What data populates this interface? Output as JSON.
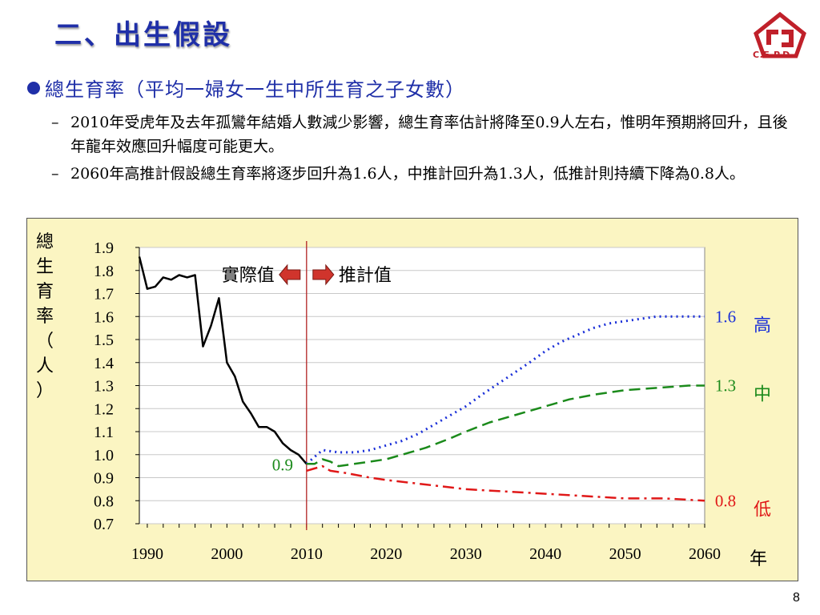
{
  "slide": {
    "title": "二、出生假設",
    "logo_text": "C.E.P.D.",
    "bullet": "總生育率（平均一婦女一生中所生育之子女數）",
    "subpoints": [
      "2010年受虎年及去年孤鸞年結婚人數減少影響，總生育率估計將降至0.9人左右，惟明年預期將回升，且後年龍年效應回升幅度可能更大。",
      "2060年高推計假設總生育率將逐步回升為1.6人，中推計回升為1.3人，低推計則持續下降為0.8人。"
    ],
    "page_number": "8",
    "colors": {
      "title": "#1f2fa8",
      "chart_bg": "#fbf5c2",
      "high": "#1a2fd8",
      "mid": "#1b8a1b",
      "low": "#e01818",
      "actual": "#000000",
      "divider": "#b22222"
    }
  },
  "chart_data": {
    "type": "line",
    "ylabel": "總生育率（人）",
    "xlabel": "年",
    "y_ticks": [
      "1.9",
      "1.8",
      "1.7",
      "1.6",
      "1.5",
      "1.4",
      "1.3",
      "1.2",
      "1.1",
      "1.0",
      "0.9",
      "0.8",
      "0.7"
    ],
    "x_ticks": [
      "1990",
      "2000",
      "2010",
      "2020",
      "2030",
      "2040",
      "2050",
      "2060"
    ],
    "ylim": [
      0.7,
      1.9
    ],
    "xlim": [
      1989,
      2060
    ],
    "legend": {
      "actual": "實際值",
      "projected": "推計值"
    },
    "annotations": {
      "start": "0.9",
      "high_end": "1.6",
      "mid_end": "1.3",
      "low_end": "0.8"
    },
    "grid": true,
    "series": [
      {
        "name": "實際值",
        "style": "solid",
        "color": "#000000",
        "x": [
          1989,
          1990,
          1991,
          1992,
          1993,
          1994,
          1995,
          1996,
          1997,
          1998,
          1999,
          2000,
          2001,
          2002,
          2003,
          2004,
          2005,
          2006,
          2007,
          2008,
          2009,
          2010
        ],
        "y": [
          1.86,
          1.72,
          1.73,
          1.77,
          1.76,
          1.78,
          1.77,
          1.78,
          1.47,
          1.56,
          1.68,
          1.4,
          1.34,
          1.23,
          1.18,
          1.12,
          1.12,
          1.1,
          1.05,
          1.02,
          1.0,
          0.96
        ]
      },
      {
        "name": "高",
        "style": "dotted",
        "color": "#1a2fd8",
        "x": [
          2010,
          2011,
          2012,
          2014,
          2016,
          2018,
          2020,
          2022,
          2024,
          2026,
          2028,
          2030,
          2032,
          2035,
          2038,
          2040,
          2042,
          2044,
          2046,
          2048,
          2050,
          2052,
          2054,
          2056,
          2058,
          2060
        ],
        "y": [
          0.96,
          0.99,
          1.02,
          1.01,
          1.01,
          1.02,
          1.04,
          1.06,
          1.09,
          1.13,
          1.17,
          1.21,
          1.26,
          1.33,
          1.4,
          1.45,
          1.49,
          1.52,
          1.55,
          1.57,
          1.58,
          1.59,
          1.6,
          1.6,
          1.6,
          1.6
        ]
      },
      {
        "name": "中",
        "style": "dashed",
        "color": "#1b8a1b",
        "x": [
          2010,
          2011,
          2012,
          2013,
          2014,
          2016,
          2018,
          2020,
          2022,
          2025,
          2028,
          2030,
          2033,
          2036,
          2040,
          2043,
          2046,
          2050,
          2054,
          2058,
          2060
        ],
        "y": [
          0.96,
          0.96,
          0.98,
          0.97,
          0.95,
          0.96,
          0.97,
          0.98,
          1.0,
          1.03,
          1.07,
          1.1,
          1.14,
          1.17,
          1.21,
          1.24,
          1.26,
          1.28,
          1.29,
          1.3,
          1.3
        ]
      },
      {
        "name": "低",
        "style": "dashdot",
        "color": "#e01818",
        "x": [
          2010,
          2011,
          2012,
          2013,
          2015,
          2018,
          2020,
          2025,
          2030,
          2035,
          2040,
          2045,
          2050,
          2055,
          2060
        ],
        "y": [
          0.93,
          0.94,
          0.95,
          0.93,
          0.92,
          0.9,
          0.89,
          0.87,
          0.85,
          0.84,
          0.83,
          0.82,
          0.81,
          0.81,
          0.8
        ]
      }
    ]
  }
}
